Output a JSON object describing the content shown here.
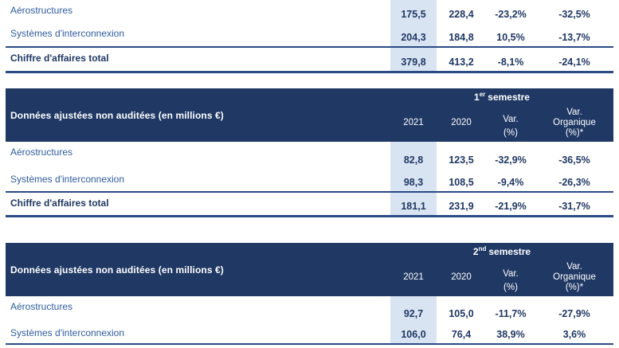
{
  "document": {
    "header_label": "Données ajustées non auditées (en millions €)",
    "columns": {
      "y2021": "2021",
      "y2020": "2020",
      "var_l1": "Var.",
      "var_l2": "(%)",
      "org_l1": "Var.",
      "org_l2": "Organique",
      "org_l3": "(%)*"
    },
    "semesters": {
      "s1": {
        "num": "1",
        "sup": "er",
        "word": "semestre"
      },
      "s2": {
        "num": "2",
        "sup": "nd",
        "word": "semestre"
      }
    },
    "tables": {
      "top": {
        "rows": [
          {
            "label": "Aérostructures",
            "v2021": "175,5",
            "v2020": "228,4",
            "var": "-23,2%",
            "org": "-32,5%"
          },
          {
            "label": "Systèmes d'interconnexion",
            "v2021": "204,3",
            "v2020": "184,8",
            "var": "10,5%",
            "org": "-13,7%"
          },
          {
            "label": "Chiffre d'affaires total",
            "v2021": "379,8",
            "v2020": "413,2",
            "var": "-8,1%",
            "org": "-24,1%"
          }
        ]
      },
      "s1": {
        "rows": [
          {
            "label": "Aérostructures",
            "v2021": "82,8",
            "v2020": "123,5",
            "var": "-32,9%",
            "org": "-36,5%"
          },
          {
            "label": "Systèmes d'interconnexion",
            "v2021": "98,3",
            "v2020": "108,5",
            "var": "-9,4%",
            "org": "-26,3%"
          },
          {
            "label": "Chiffre d'affaires total",
            "v2021": "181,1",
            "v2020": "231,9",
            "var": "-21,9%",
            "org": "-31,7%"
          }
        ]
      },
      "s2": {
        "rows": [
          {
            "label": "Aérostructures",
            "v2021": "92,7",
            "v2020": "105,0",
            "var": "-11,7%",
            "org": "-27,9%"
          },
          {
            "label": "Systèmes d'interconnexion",
            "v2021": "106,0",
            "v2020": "76,4",
            "var": "38,9%",
            "org": "3,6%"
          }
        ]
      }
    },
    "colors": {
      "navy": "#1F3864",
      "header_text": "#FFFFFF",
      "label_text": "#2E5C9E",
      "value_text": "#1F3864",
      "highlight": "#D9E4F2",
      "line": "#2A4A85"
    }
  }
}
